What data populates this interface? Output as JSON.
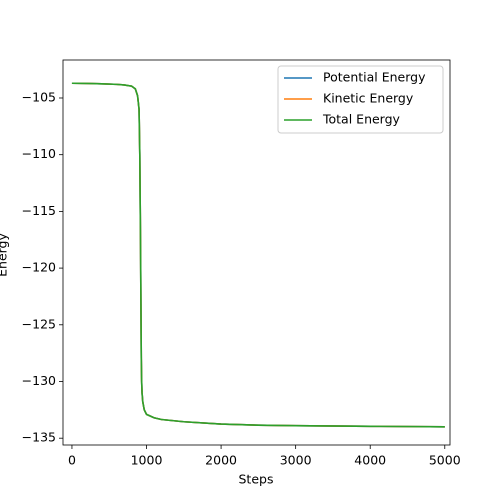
{
  "chart_data": {
    "type": "line",
    "xlabel": "Steps",
    "ylabel": "Energy",
    "x": [
      0,
      200,
      400,
      600,
      700,
      800,
      850,
      880,
      900,
      910,
      920,
      925,
      930,
      935,
      940,
      950,
      970,
      1000,
      1100,
      1200,
      1500,
      2000,
      2500,
      3000,
      4000,
      5000
    ],
    "series": [
      {
        "name": "Potential Energy",
        "color": "#1f77b4",
        "values": [
          -103.7,
          -103.72,
          -103.75,
          -103.8,
          -103.85,
          -103.95,
          -104.2,
          -104.8,
          -106,
          -110,
          -118,
          -123,
          -128,
          -130,
          -131,
          -131.8,
          -132.5,
          -132.9,
          -133.2,
          -133.35,
          -133.55,
          -133.75,
          -133.85,
          -133.9,
          -133.95,
          -134.0
        ]
      },
      {
        "name": "Kinetic Energy",
        "color": "#ff7f0e",
        "values": [
          -103.7,
          -103.72,
          -103.75,
          -103.8,
          -103.85,
          -103.95,
          -104.2,
          -104.8,
          -106,
          -110,
          -118,
          -123,
          -128,
          -130,
          -131,
          -131.8,
          -132.5,
          -132.9,
          -133.2,
          -133.35,
          -133.55,
          -133.75,
          -133.85,
          -133.9,
          -133.95,
          -134.0
        ]
      },
      {
        "name": "Total Energy",
        "color": "#2ca02c",
        "values": [
          -103.7,
          -103.72,
          -103.75,
          -103.8,
          -103.85,
          -103.95,
          -104.2,
          -104.8,
          -106,
          -110,
          -118,
          -123,
          -128,
          -130,
          -131,
          -131.8,
          -132.5,
          -132.9,
          -133.2,
          -133.35,
          -133.55,
          -133.75,
          -133.85,
          -133.9,
          -133.95,
          -134.0
        ]
      }
    ],
    "xlim": [
      -120,
      5070
    ],
    "xticks": [
      0,
      1000,
      2000,
      3000,
      4000,
      5000
    ],
    "ylim": [
      -135.6,
      -101.65
    ],
    "yticks": [
      {
        "value": -135,
        "label": "−135"
      },
      {
        "value": -130,
        "label": "−130"
      },
      {
        "value": -125,
        "label": "−125"
      },
      {
        "value": -120,
        "label": "−120"
      },
      {
        "value": -115,
        "label": "−115"
      },
      {
        "value": -110,
        "label": "−110"
      },
      {
        "value": -105,
        "label": "−105"
      }
    ],
    "legend": "upper right"
  }
}
